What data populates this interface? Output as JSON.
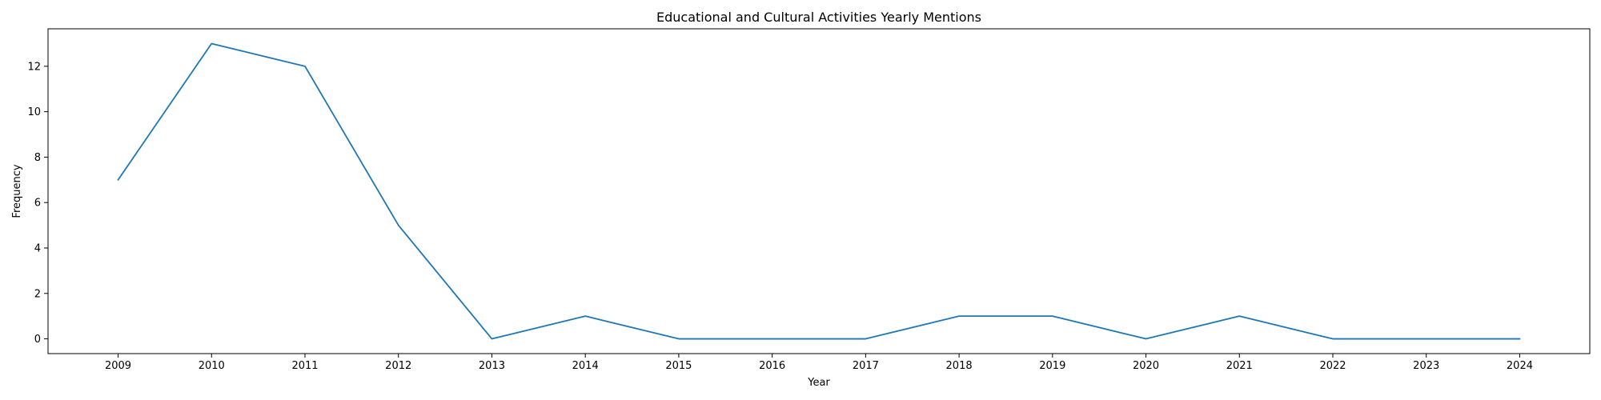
{
  "chart_data": {
    "type": "line",
    "title": "Educational and Cultural Activities Yearly Mentions",
    "xlabel": "Year",
    "ylabel": "Frequency",
    "x": [
      "2009",
      "2010",
      "2011",
      "2012",
      "2013",
      "2014",
      "2015",
      "2016",
      "2017",
      "2018",
      "2019",
      "2020",
      "2021",
      "2022",
      "2023",
      "2024"
    ],
    "series": [
      {
        "values": [
          7,
          13,
          12,
          5,
          0,
          1,
          0,
          0,
          0,
          1,
          1,
          0,
          1,
          0,
          0,
          0
        ],
        "color": "#1f77b4"
      }
    ],
    "yticks": [
      0,
      2,
      4,
      6,
      8,
      10,
      12
    ],
    "ylim": [
      -0.65,
      13.65
    ],
    "grid": false,
    "legend": "none"
  }
}
